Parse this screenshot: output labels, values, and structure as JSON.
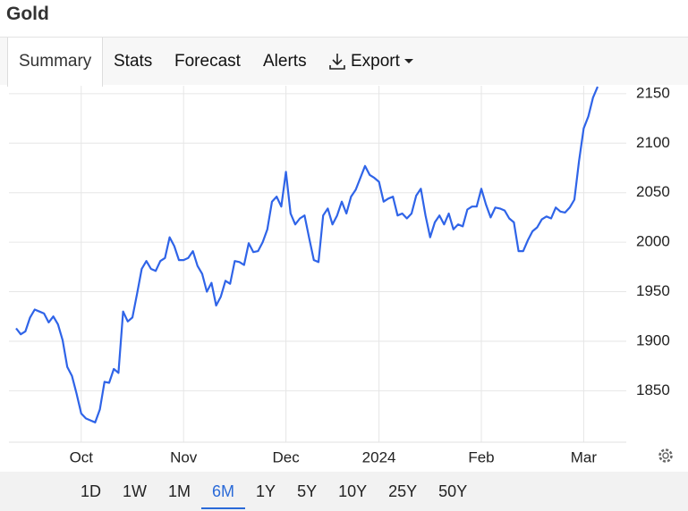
{
  "header": {
    "title": "Gold"
  },
  "tabs": [
    "Summary",
    "Stats",
    "Forecast",
    "Alerts",
    "Export"
  ],
  "range_buttons": [
    "1D",
    "1W",
    "1M",
    "6M",
    "1Y",
    "5Y",
    "10Y",
    "25Y",
    "50Y"
  ],
  "chart_data": {
    "type": "line",
    "categories": [
      null,
      null,
      null,
      null,
      null,
      null,
      null,
      null,
      null,
      null,
      null,
      null,
      null,
      null,
      "Oct",
      null,
      null,
      null,
      null,
      null,
      null,
      null,
      null,
      null,
      null,
      null,
      null,
      null,
      null,
      null,
      null,
      null,
      null,
      null,
      null,
      null,
      "Nov",
      null,
      null,
      null,
      null,
      null,
      null,
      null,
      null,
      null,
      null,
      null,
      null,
      null,
      null,
      null,
      null,
      null,
      null,
      null,
      null,
      null,
      "Dec",
      null,
      null,
      null,
      null,
      null,
      null,
      null,
      null,
      null,
      null,
      null,
      null,
      null,
      null,
      null,
      null,
      null,
      null,
      null,
      "2024",
      null,
      null,
      null,
      null,
      null,
      null,
      null,
      null,
      null,
      null,
      null,
      null,
      null,
      null,
      null,
      null,
      null,
      null,
      null,
      null,
      null,
      "Feb",
      null,
      null,
      null,
      null,
      null,
      null,
      null,
      null,
      null,
      null,
      null,
      null,
      null,
      null,
      null,
      null,
      null,
      null,
      null,
      null,
      null,
      "Mar",
      null,
      null,
      null
    ],
    "series": [
      {
        "name": "Gold",
        "color": "#2f64e8",
        "values": [
          1913,
          1907,
          1910,
          1924,
          1932,
          1930,
          1928,
          1919,
          1925,
          1917,
          1901,
          1874,
          1865,
          1847,
          1827,
          1822,
          1820,
          1818,
          1831,
          1859,
          1858,
          1872,
          1868,
          1930,
          1920,
          1924,
          1948,
          1973,
          1981,
          1973,
          1971,
          1981,
          1984,
          2005,
          1996,
          1982,
          1982,
          1984,
          1991,
          1976,
          1968,
          1950,
          1959,
          1936,
          1945,
          1961,
          1958,
          1981,
          1980,
          1977,
          1999,
          1990,
          1991,
          2000,
          2013,
          2041,
          2046,
          2036,
          2071,
          2029,
          2018,
          2024,
          2027,
          2004,
          1982,
          1980,
          2027,
          2034,
          2018,
          2027,
          2041,
          2029,
          2046,
          2053,
          2065,
          2077,
          2068,
          2065,
          2061,
          2041,
          2044,
          2046,
          2027,
          2029,
          2024,
          2029,
          2047,
          2054,
          2027,
          2005,
          2020,
          2027,
          2018,
          2029,
          2013,
          2018,
          2016,
          2033,
          2036,
          2036,
          2054,
          2038,
          2025,
          2035,
          2034,
          2032,
          2024,
          2020,
          1991,
          1991,
          2002,
          2011,
          2015,
          2023,
          2026,
          2024,
          2035,
          2031,
          2030,
          2035,
          2043,
          2082,
          2115,
          2127,
          2146,
          2157
        ]
      }
    ],
    "ylim": [
      1798,
      2158
    ],
    "yticks": [
      1850,
      1900,
      1950,
      2000,
      2050,
      2100,
      2150
    ],
    "grid": true
  }
}
